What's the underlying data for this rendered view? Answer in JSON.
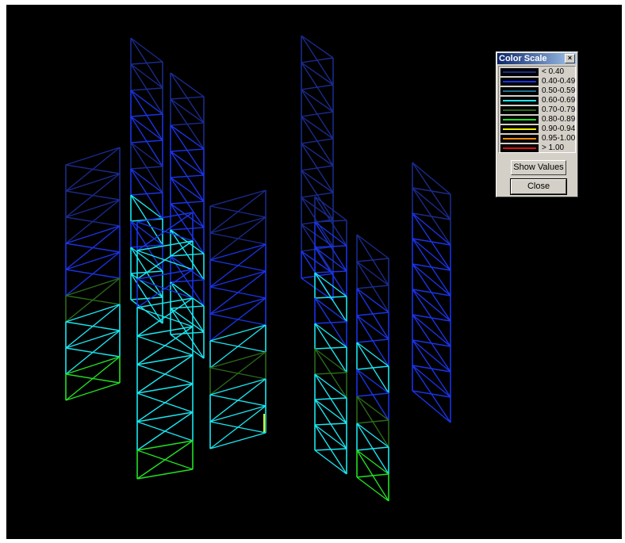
{
  "color_scale": {
    "title": "Color Scale",
    "close_x": "×",
    "items": [
      {
        "label": "< 0.40",
        "color": "#1a2a8c"
      },
      {
        "label": "0.40-0.49",
        "color": "#1a33e6"
      },
      {
        "label": "0.50-0.59",
        "color": "#1f6f8a"
      },
      {
        "label": "0.60-0.69",
        "color": "#19e6f0"
      },
      {
        "label": "0.70-0.79",
        "color": "#2a6a1a"
      },
      {
        "label": "0.80-0.89",
        "color": "#22e022"
      },
      {
        "label": "0.90-0.94",
        "color": "#f0f000"
      },
      {
        "label": "0.95-1.00",
        "color": "#f08a00"
      },
      {
        "label": "> 1.00",
        "color": "#e01010"
      }
    ],
    "show_values_label": "Show Values",
    "close_label": "Close"
  },
  "colors": {
    "viewport_background": "#000000",
    "dark_blue": "#1a2a8c",
    "blue": "#1a33e6",
    "cyan": "#19e6f0",
    "dark_green": "#2a6a1a",
    "green": "#22e022",
    "yellow": "#f0f000"
  }
}
